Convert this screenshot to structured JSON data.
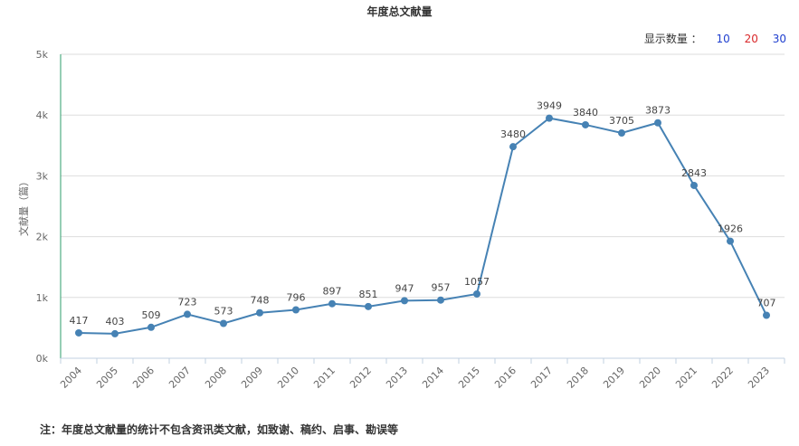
{
  "header": {
    "title": "年度总文献量"
  },
  "count_selector": {
    "label": "显示数量 ：",
    "options": [
      {
        "label": "10",
        "color": "#1f3fcf"
      },
      {
        "label": "20",
        "color": "#d9282a"
      },
      {
        "label": "30",
        "color": "#1f3fcf"
      }
    ]
  },
  "footer": {
    "note": "注：年度总文献量的统计不包含资讯类文献，如致谢、稿约、启事、勘误等"
  },
  "chart_data": {
    "type": "line",
    "title": "年度总文献量",
    "xlabel": "",
    "ylabel": "文献量（篇）",
    "ylim": [
      0,
      5000
    ],
    "yticks": [
      "0k",
      "1k",
      "2k",
      "3k",
      "4k",
      "5k"
    ],
    "categories": [
      "2004",
      "2005",
      "2006",
      "2007",
      "2008",
      "2009",
      "2010",
      "2011",
      "2012",
      "2013",
      "2014",
      "2015",
      "2016",
      "2017",
      "2018",
      "2019",
      "2020",
      "2021",
      "2022",
      "2023"
    ],
    "series": [
      {
        "values": [
          417,
          403,
          509,
          723,
          573,
          748,
          796,
          897,
          851,
          947,
          957,
          1057,
          3480,
          3949,
          3840,
          3705,
          3873,
          2843,
          1926,
          707
        ]
      }
    ],
    "grid": true,
    "line_color": "#4682b4",
    "axis_color": "#2e9e6b"
  }
}
